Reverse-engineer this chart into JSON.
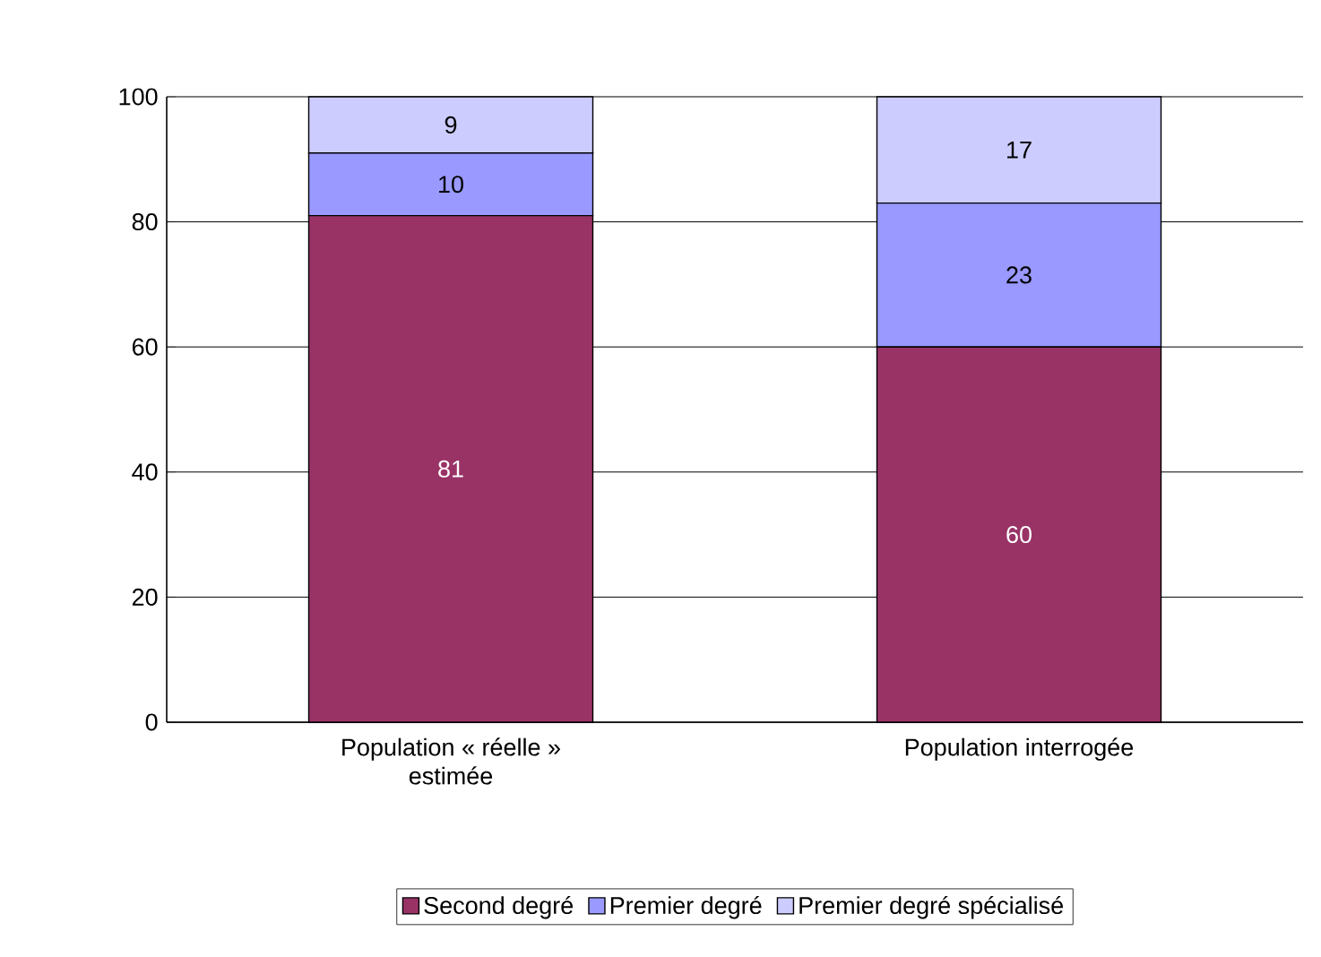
{
  "chart_data": {
    "type": "bar",
    "stacked": true,
    "categories": [
      "Population « réelle » estimée",
      "Population interrogée"
    ],
    "series": [
      {
        "name": "Second degré",
        "color": "#993366",
        "values": [
          81,
          60
        ]
      },
      {
        "name": "Premier degré",
        "color": "#9999ff",
        "values": [
          10,
          23
        ]
      },
      {
        "name": "Premier degré spécialisé",
        "color": "#ccccff",
        "values": [
          9,
          17
        ]
      }
    ],
    "ylim": [
      0,
      100
    ],
    "yticks": [
      0,
      20,
      40,
      60,
      80,
      100
    ],
    "grid": "y",
    "legend": "bottom",
    "data_labels": true
  }
}
